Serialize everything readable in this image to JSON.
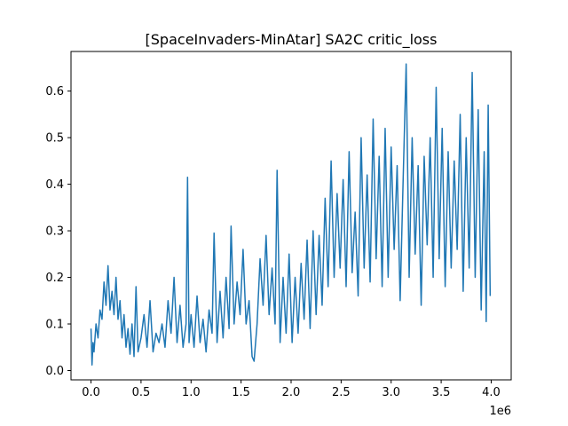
{
  "chart_data": {
    "type": "line",
    "title": "[SpaceInvaders-MinAtar] SA2C critic_loss",
    "xlabel": "",
    "ylabel": "",
    "x_multiplier_label": "1e6",
    "xlim": [
      -0.2,
      4.2
    ],
    "ylim": [
      -0.02,
      0.685
    ],
    "x_ticks": [
      0.0,
      0.5,
      1.0,
      1.5,
      2.0,
      2.5,
      3.0,
      3.5,
      4.0
    ],
    "x_tick_labels": [
      "0.0",
      "0.5",
      "1.0",
      "1.5",
      "2.0",
      "2.5",
      "3.0",
      "3.5",
      "4.0"
    ],
    "y_ticks": [
      0.0,
      0.1,
      0.2,
      0.3,
      0.4,
      0.5,
      0.6
    ],
    "y_tick_labels": [
      "0.0",
      "0.1",
      "0.2",
      "0.3",
      "0.4",
      "0.5",
      "0.6"
    ],
    "grid": false,
    "line_color": "#1f77b4",
    "series": [
      {
        "x": [
          0.0,
          0.01,
          0.02,
          0.03,
          0.05,
          0.07,
          0.09,
          0.11,
          0.13,
          0.15,
          0.17,
          0.19,
          0.21,
          0.23,
          0.25,
          0.27,
          0.29,
          0.31,
          0.33,
          0.35,
          0.37,
          0.39,
          0.41,
          0.43,
          0.45,
          0.47,
          0.5,
          0.53,
          0.56,
          0.59,
          0.62,
          0.65,
          0.68,
          0.71,
          0.74,
          0.77,
          0.8,
          0.83,
          0.86,
          0.89,
          0.92,
          0.95,
          0.965,
          0.98,
          1.0,
          1.03,
          1.06,
          1.09,
          1.12,
          1.15,
          1.18,
          1.21,
          1.23,
          1.26,
          1.29,
          1.32,
          1.35,
          1.38,
          1.4,
          1.43,
          1.46,
          1.49,
          1.52,
          1.55,
          1.58,
          1.61,
          1.63,
          1.66,
          1.69,
          1.72,
          1.75,
          1.78,
          1.81,
          1.84,
          1.86,
          1.89,
          1.92,
          1.95,
          1.98,
          2.01,
          2.04,
          2.07,
          2.1,
          2.13,
          2.16,
          2.19,
          2.22,
          2.25,
          2.28,
          2.31,
          2.34,
          2.37,
          2.4,
          2.43,
          2.46,
          2.49,
          2.52,
          2.55,
          2.58,
          2.61,
          2.64,
          2.67,
          2.7,
          2.73,
          2.76,
          2.79,
          2.82,
          2.85,
          2.88,
          2.91,
          2.94,
          2.97,
          3.0,
          3.03,
          3.06,
          3.09,
          3.12,
          3.15,
          3.18,
          3.21,
          3.24,
          3.27,
          3.3,
          3.33,
          3.36,
          3.39,
          3.42,
          3.45,
          3.48,
          3.51,
          3.54,
          3.57,
          3.6,
          3.63,
          3.66,
          3.69,
          3.72,
          3.75,
          3.78,
          3.81,
          3.84,
          3.87,
          3.9,
          3.93,
          3.95,
          3.97,
          3.99
        ],
        "y": [
          0.09,
          0.012,
          0.06,
          0.04,
          0.1,
          0.07,
          0.13,
          0.11,
          0.19,
          0.14,
          0.225,
          0.13,
          0.17,
          0.12,
          0.2,
          0.11,
          0.15,
          0.07,
          0.12,
          0.05,
          0.09,
          0.035,
          0.1,
          0.03,
          0.18,
          0.04,
          0.07,
          0.12,
          0.05,
          0.15,
          0.04,
          0.08,
          0.06,
          0.1,
          0.05,
          0.15,
          0.08,
          0.2,
          0.06,
          0.14,
          0.05,
          0.1,
          0.415,
          0.06,
          0.12,
          0.05,
          0.16,
          0.06,
          0.11,
          0.04,
          0.13,
          0.08,
          0.295,
          0.06,
          0.17,
          0.07,
          0.2,
          0.09,
          0.31,
          0.1,
          0.19,
          0.12,
          0.26,
          0.1,
          0.15,
          0.03,
          0.02,
          0.1,
          0.24,
          0.14,
          0.29,
          0.12,
          0.22,
          0.1,
          0.43,
          0.06,
          0.2,
          0.08,
          0.25,
          0.06,
          0.2,
          0.08,
          0.23,
          0.11,
          0.28,
          0.09,
          0.3,
          0.12,
          0.29,
          0.14,
          0.37,
          0.18,
          0.45,
          0.2,
          0.38,
          0.22,
          0.41,
          0.18,
          0.47,
          0.21,
          0.34,
          0.16,
          0.5,
          0.22,
          0.42,
          0.19,
          0.54,
          0.24,
          0.46,
          0.18,
          0.52,
          0.2,
          0.48,
          0.26,
          0.44,
          0.15,
          0.41,
          0.658,
          0.2,
          0.5,
          0.25,
          0.44,
          0.14,
          0.46,
          0.27,
          0.5,
          0.2,
          0.608,
          0.24,
          0.52,
          0.18,
          0.47,
          0.22,
          0.45,
          0.26,
          0.55,
          0.17,
          0.5,
          0.22,
          0.64,
          0.2,
          0.56,
          0.13,
          0.47,
          0.105,
          0.57,
          0.16
        ]
      }
    ]
  }
}
